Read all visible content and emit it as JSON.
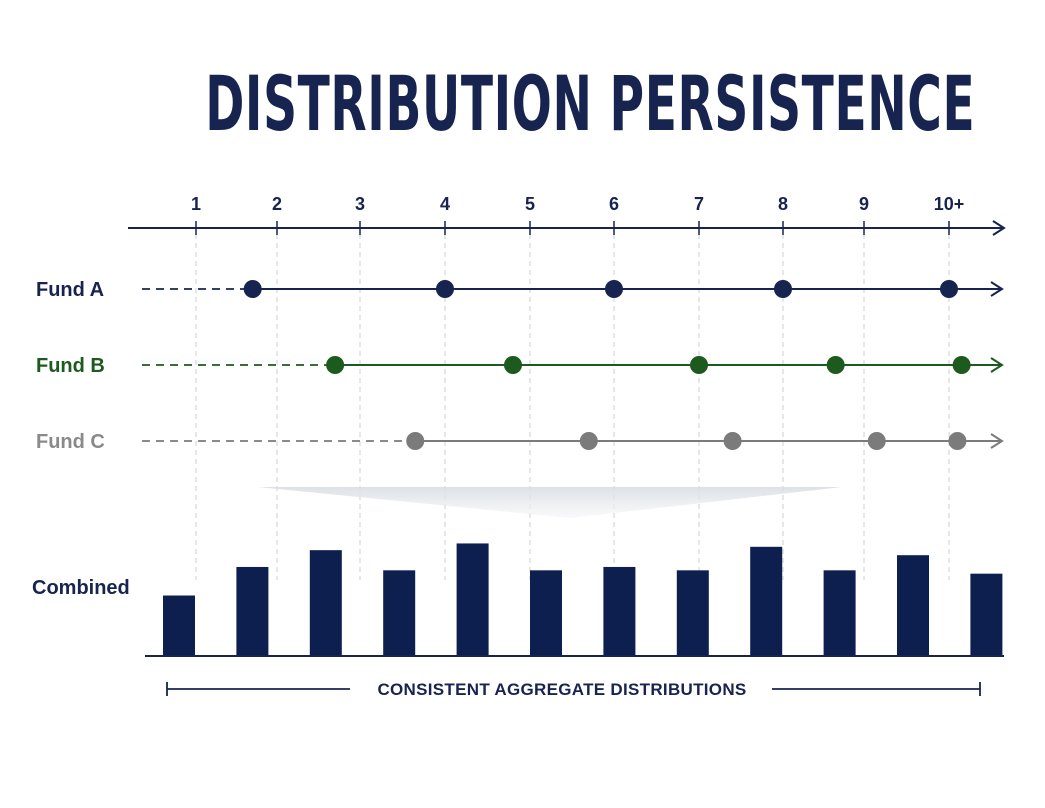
{
  "title": "DISTRIBUTION PERSISTENCE",
  "colors": {
    "navy": "#17244f",
    "dark_navy": "#0c1f4f",
    "green": "#1d5a1d",
    "gray": "#7b7b7b",
    "gray_label": "#8a8a8a",
    "grid": "#cfcfcf"
  },
  "axis": {
    "ticks": [
      "1",
      "2",
      "3",
      "4",
      "5",
      "6",
      "7",
      "8",
      "9",
      "10+"
    ]
  },
  "rows": [
    {
      "label": "Fund A",
      "color_key": "navy",
      "points": [
        1.7,
        4.0,
        6.0,
        8.0,
        10.0
      ]
    },
    {
      "label": "Fund B",
      "color_key": "green",
      "points": [
        2.7,
        4.8,
        7.0,
        8.65,
        10.15
      ]
    },
    {
      "label": "Fund C",
      "color_key": "gray",
      "points": [
        3.65,
        5.7,
        7.4,
        9.15,
        10.1
      ]
    }
  ],
  "combined": {
    "label": "Combined",
    "bars": [
      0.36,
      0.53,
      0.63,
      0.51,
      0.67,
      0.51,
      0.53,
      0.51,
      0.65,
      0.51,
      0.6,
      0.49
    ]
  },
  "footer": {
    "label": "CONSISTENT AGGREGATE DISTRIBUTIONS"
  }
}
